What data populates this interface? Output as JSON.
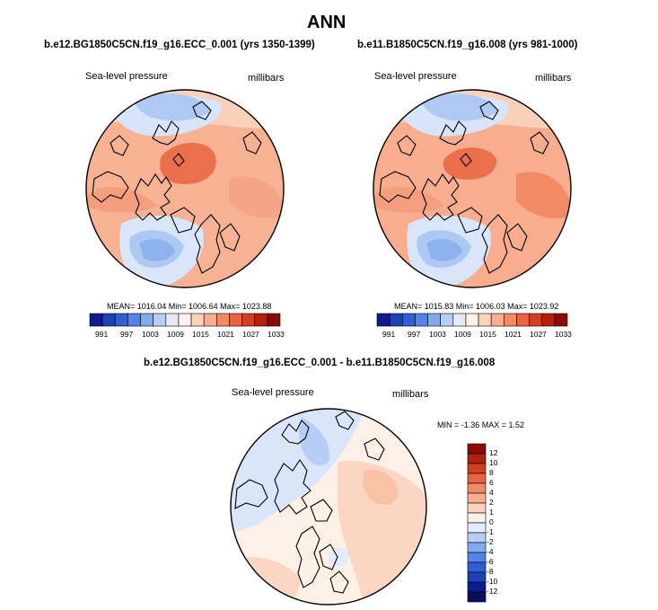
{
  "page": {
    "title": "ANN"
  },
  "panels": [
    {
      "case": "b.e12.BG1850C5CN.f19_g16.ECC_0.001 (yrs 1350-1399)",
      "variable": "Sea-level pressure",
      "units": "millibars",
      "stats": "MEAN= 1016.04   Min= 1006.64   Max= 1023.88"
    },
    {
      "case": "b.e11.B1850C5CN.f19_g16.008 (yrs 981-1000)",
      "variable": "Sea-level pressure",
      "units": "millibars",
      "stats": "MEAN= 1015.83   Min= 1006.03   Max= 1023.92"
    }
  ],
  "difference": {
    "title": "b.e12.BG1850C5CN.f19_g16.ECC_0.001 - b.e11.B1850C5CN.f19_g16.008",
    "variable": "Sea-level pressure",
    "units": "millibars",
    "stats": "MIN = -1.36 MAX =   1.52"
  },
  "abs_colorbar": {
    "ticks": [
      "991",
      "997",
      "1003",
      "1009",
      "1015",
      "1021",
      "1027",
      "1033"
    ],
    "colors": [
      "#0a1d8c",
      "#1f3fb8",
      "#2f5fd6",
      "#5283e8",
      "#84a9f0",
      "#b6cdf7",
      "#e4ecfb",
      "#fdf0e6",
      "#fbd2bd",
      "#f7ad8e",
      "#f28a66",
      "#e8633f",
      "#d23e22",
      "#b2200f",
      "#8c0a05"
    ]
  },
  "diff_colorbar": {
    "ticks": [
      "12",
      "10",
      "8",
      "6",
      "4",
      "2",
      "1",
      "0",
      "-1",
      "-2",
      "-4",
      "-6",
      "-8",
      "-10",
      "-12"
    ],
    "colors": [
      "#8c0a05",
      "#b2200f",
      "#d23e22",
      "#e8633f",
      "#f28a66",
      "#f7ad8e",
      "#fbd2bd",
      "#fdf0e6",
      "#e4ecfb",
      "#b6cdf7",
      "#84a9f0",
      "#5283e8",
      "#2f5fd6",
      "#1f3fb8",
      "#0a1d8c",
      "#070f5c"
    ]
  },
  "colors": {
    "high_strong": "#ec6f4c",
    "high_mid": "#f5a585",
    "high_light": "#fcd7c3",
    "neutral": "#fdf0e6",
    "low_light": "#d9e6fa",
    "low_mid": "#adc8f3",
    "low_strong": "#8fb1ee"
  }
}
